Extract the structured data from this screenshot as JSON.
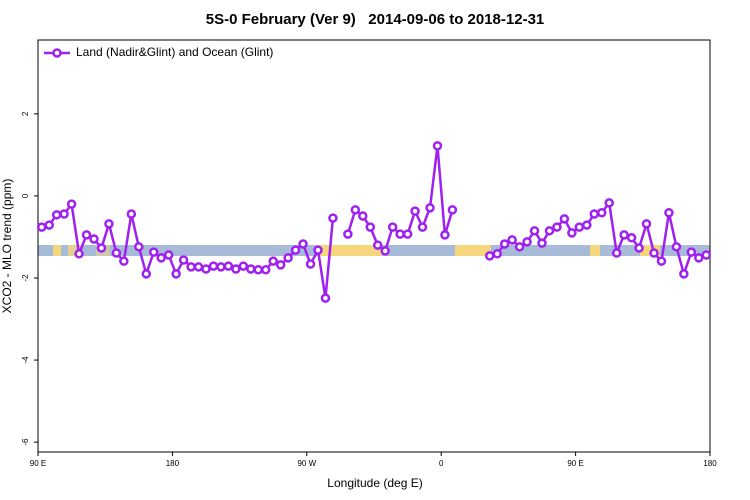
{
  "chart_data": {
    "type": "line",
    "title": "5S-0 February (Ver 9)   2014-09-06 to 2018-12-31",
    "x_label": "Longitude (deg E)",
    "y_label": "XCO2 - MLO trend (ppm)",
    "xlim": [
      90,
      540
    ],
    "ylim": [
      -6.24,
      3.8
    ],
    "xticks": [
      {
        "value": 90,
        "label": "90 E"
      },
      180,
      {
        "value": 270,
        "label": "90 W"
      },
      {
        "value": 360,
        "label": "0"
      },
      {
        "value": 450,
        "label": "90 E"
      },
      {
        "value": 540,
        "label": "180"
      }
    ],
    "yticks": [
      -6,
      -4,
      -2,
      0,
      2
    ],
    "legend": "top-left",
    "x": [
      92.5,
      97.5,
      102.5,
      107.5,
      112.5,
      117.5,
      122.5,
      127.5,
      132.5,
      137.5,
      142.5,
      147.5,
      152.5,
      157.5,
      162.5,
      167.5,
      172.5,
      177.5,
      182.5,
      187.5,
      192.5,
      197.5,
      202.5,
      207.5,
      212.5,
      217.5,
      222.5,
      227.5,
      232.5,
      237.5,
      242.5,
      247.5,
      252.5,
      257.5,
      262.5,
      267.5,
      272.5,
      277.5,
      282.5,
      287.5,
      292.5,
      297.5,
      302.5,
      307.5,
      312.5,
      317.5,
      322.5,
      327.5,
      332.5,
      337.5,
      342.5,
      347.5,
      352.5,
      357.5,
      362.5,
      367.5,
      372.5,
      377.5,
      382.5,
      387.5,
      392.5,
      397.5,
      402.5,
      407.5,
      412.5,
      417.5,
      422.5,
      427.5,
      432.5,
      437.5,
      442.5,
      447.5,
      452.5,
      457.5,
      462.5,
      467.5,
      472.5,
      477.5,
      482.5,
      487.5,
      492.5,
      497.5,
      502.5,
      507.5,
      512.5,
      517.5,
      522.5,
      527.5,
      532.5,
      537.5
    ],
    "series": [
      {
        "name": "Land (Nadir&Glint) and Ocean (Glint)",
        "color": "#a020f0",
        "values": [
          -0.76,
          -0.71,
          -0.46,
          -0.44,
          -0.2,
          -1.41,
          -0.95,
          -1.05,
          -1.27,
          -0.68,
          -1.39,
          -1.59,
          -0.44,
          -1.24,
          -1.9,
          -1.37,
          -1.51,
          -1.44,
          -1.9,
          -1.56,
          -1.73,
          -1.73,
          -1.78,
          -1.71,
          -1.73,
          -1.71,
          -1.78,
          -1.71,
          -1.78,
          -1.8,
          -1.8,
          -1.59,
          -1.68,
          -1.51,
          -1.32,
          -1.17,
          -1.66,
          -1.32,
          -2.49,
          -0.54,
          null,
          -0.93,
          -0.34,
          -0.49,
          -0.76,
          -1.2,
          -1.34,
          -0.76,
          -0.93,
          -0.93,
          -0.37,
          -0.76,
          -0.29,
          1.22,
          -0.95,
          -0.34,
          null,
          null,
          null,
          null,
          -1.46,
          -1.41,
          -1.17,
          -1.07,
          -1.24,
          -1.12,
          -0.85,
          -1.15,
          -0.85,
          -0.76,
          -0.56,
          -0.9,
          -0.76,
          -0.71,
          -0.44,
          -0.41,
          -0.17,
          -1.39,
          -0.95,
          -1.02,
          -1.27,
          -0.68,
          -1.39,
          -1.59,
          -0.41,
          -1.24,
          -1.9,
          -1.37,
          -1.51,
          -1.44
        ]
      }
    ]
  }
}
